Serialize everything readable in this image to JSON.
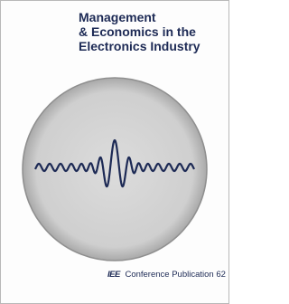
{
  "title": {
    "lines": [
      "Management",
      "& Economics in the",
      "Electronics Industry"
    ]
  },
  "footer": {
    "publisher": "IEE",
    "series": "Conference Publication 62"
  }
}
